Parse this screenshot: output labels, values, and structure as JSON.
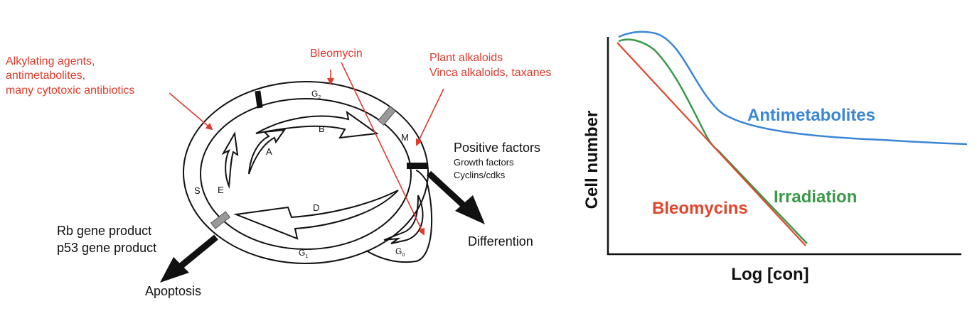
{
  "colors": {
    "annotation_red": "#e03a2c",
    "ink": "#111111",
    "antimetabolites_blue": "#3a86d6",
    "irradiation_green": "#3a9a48",
    "bleomycins_red": "#e0462c"
  },
  "cycle": {
    "drug_labels": {
      "alkylating_line1": "Alkylating agents,",
      "alkylating_line2": "antimetabolites,",
      "alkylating_line3": "many cytotoxic antibiotics",
      "bleomycin": "Bleomycin",
      "plant_line1": "Plant alkaloids",
      "plant_line2": "Vinca alkaloids, taxanes"
    },
    "phases": {
      "g2_base": "G",
      "g2_sub": "2",
      "m": "M",
      "s": "S",
      "g1_base": "G",
      "g1_sub": "1",
      "g0_base": "G",
      "g0_sub": "0"
    },
    "inner": {
      "a": "A",
      "b": "B",
      "d": "D",
      "e": "E"
    },
    "factors": {
      "positive_title": "Positive factors",
      "growth": "Growth factors",
      "cyclins": "Cyclins/cdks",
      "differention": "Differention",
      "rb": "Rb gene product",
      "p53": "p53 gene product",
      "apoptosis": "Apoptosis"
    }
  },
  "chart_data": {
    "type": "line",
    "xlabel": "Log [con]",
    "ylabel": "Cell number",
    "grid": false,
    "legend": "inline labels",
    "series": [
      {
        "name": "Antimetabolites",
        "color": "#3a86d6"
      },
      {
        "name": "Irradiation",
        "color": "#3a9a48"
      },
      {
        "name": "Bleomycins",
        "color": "#e0462c"
      }
    ]
  }
}
